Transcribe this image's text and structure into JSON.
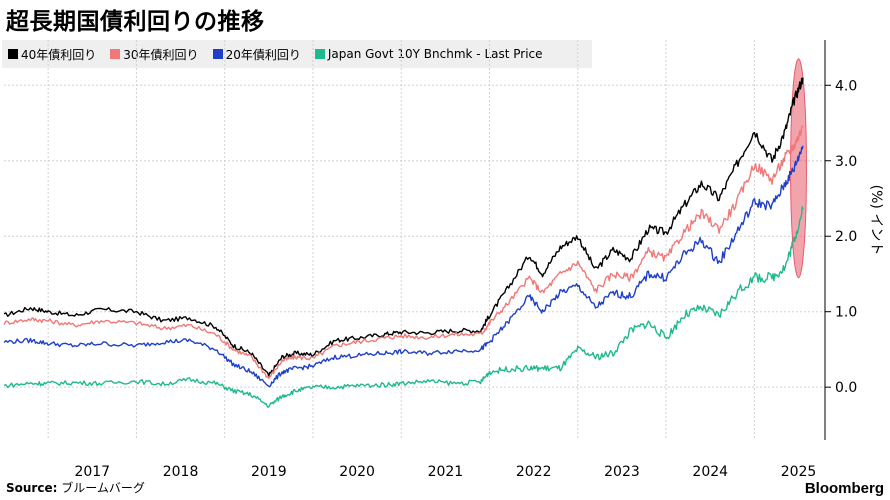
{
  "title": "超長期国債利回りの推移",
  "source_label": "Source:",
  "source_text": "ブルームバーグ",
  "brand": "Bloomberg",
  "chart_data": {
    "type": "line",
    "ylabel": "(%) イント",
    "y_ticks": [
      "4.0",
      "3.0",
      "2.0",
      "1.0",
      "0.0"
    ],
    "ylim": [
      -0.7,
      4.6
    ],
    "x_ticks": [
      "2017",
      "2018",
      "2019",
      "2020",
      "2021",
      "2022",
      "2023",
      "2024",
      "2025"
    ],
    "xlim": [
      2016.5,
      2025.8
    ],
    "grid": true,
    "legend_position": "top-left",
    "highlight": {
      "x_center": 2025.5,
      "y_center": 2.9,
      "rx": 0.09,
      "ry": 1.45,
      "color": "#e85a6a"
    },
    "series": [
      {
        "name": "40年債利回り",
        "color": "#000000",
        "x": [
          2016.5,
          2016.8,
          2017.0,
          2017.3,
          2017.6,
          2018.0,
          2018.3,
          2018.6,
          2018.9,
          2019.1,
          2019.3,
          2019.5,
          2019.65,
          2019.8,
          2020.0,
          2020.25,
          2020.5,
          2020.8,
          2021.0,
          2021.3,
          2021.6,
          2021.9,
          2022.0,
          2022.2,
          2022.45,
          2022.6,
          2022.8,
          2023.0,
          2023.2,
          2023.4,
          2023.6,
          2023.8,
          2024.0,
          2024.2,
          2024.4,
          2024.6,
          2024.8,
          2025.0,
          2025.2,
          2025.35,
          2025.45,
          2025.55
        ],
        "y": [
          0.95,
          1.05,
          1.0,
          0.95,
          1.03,
          1.0,
          0.88,
          0.92,
          0.8,
          0.55,
          0.45,
          0.15,
          0.4,
          0.45,
          0.43,
          0.62,
          0.65,
          0.7,
          0.73,
          0.72,
          0.75,
          0.75,
          0.95,
          1.3,
          1.75,
          1.5,
          1.85,
          2.0,
          1.55,
          1.82,
          1.7,
          2.1,
          2.05,
          2.4,
          2.7,
          2.5,
          2.95,
          3.4,
          3.0,
          3.4,
          3.8,
          4.1
        ]
      },
      {
        "name": "30年債利回り",
        "color": "#f07878",
        "x": [
          2016.5,
          2016.8,
          2017.0,
          2017.3,
          2017.6,
          2018.0,
          2018.3,
          2018.6,
          2018.9,
          2019.1,
          2019.3,
          2019.5,
          2019.65,
          2019.8,
          2020.0,
          2020.25,
          2020.5,
          2020.8,
          2021.0,
          2021.3,
          2021.6,
          2021.9,
          2022.0,
          2022.2,
          2022.45,
          2022.6,
          2022.8,
          2023.0,
          2023.2,
          2023.4,
          2023.6,
          2023.8,
          2024.0,
          2024.2,
          2024.4,
          2024.6,
          2024.8,
          2025.0,
          2025.2,
          2025.35,
          2025.45,
          2025.55
        ],
        "y": [
          0.85,
          0.9,
          0.88,
          0.82,
          0.88,
          0.85,
          0.78,
          0.82,
          0.7,
          0.5,
          0.4,
          0.12,
          0.35,
          0.4,
          0.38,
          0.55,
          0.6,
          0.65,
          0.68,
          0.66,
          0.7,
          0.7,
          0.85,
          1.1,
          1.45,
          1.25,
          1.5,
          1.65,
          1.28,
          1.5,
          1.45,
          1.8,
          1.7,
          2.05,
          2.3,
          2.1,
          2.45,
          2.95,
          2.75,
          3.05,
          3.2,
          3.45
        ]
      },
      {
        "name": "20年債利回り",
        "color": "#1f3fc9",
        "x": [
          2016.5,
          2016.8,
          2017.0,
          2017.3,
          2017.6,
          2018.0,
          2018.3,
          2018.6,
          2018.9,
          2019.1,
          2019.3,
          2019.5,
          2019.65,
          2019.8,
          2020.0,
          2020.25,
          2020.5,
          2020.8,
          2021.0,
          2021.3,
          2021.6,
          2021.9,
          2022.0,
          2022.2,
          2022.45,
          2022.6,
          2022.8,
          2023.0,
          2023.2,
          2023.4,
          2023.6,
          2023.8,
          2024.0,
          2024.2,
          2024.4,
          2024.6,
          2024.8,
          2025.0,
          2025.2,
          2025.35,
          2025.45,
          2025.55
        ],
        "y": [
          0.6,
          0.62,
          0.58,
          0.55,
          0.58,
          0.55,
          0.6,
          0.62,
          0.5,
          0.3,
          0.2,
          0.02,
          0.2,
          0.25,
          0.28,
          0.4,
          0.42,
          0.45,
          0.47,
          0.45,
          0.48,
          0.5,
          0.6,
          0.85,
          1.2,
          1.0,
          1.25,
          1.35,
          1.05,
          1.25,
          1.2,
          1.5,
          1.45,
          1.75,
          1.95,
          1.65,
          2.05,
          2.45,
          2.4,
          2.7,
          2.9,
          3.2
        ]
      },
      {
        "name": "Japan Govt 10Y Bnchmk - Last Price",
        "color": "#1fb98f",
        "x": [
          2016.5,
          2016.8,
          2017.0,
          2017.3,
          2017.6,
          2018.0,
          2018.3,
          2018.6,
          2018.9,
          2019.1,
          2019.3,
          2019.5,
          2019.65,
          2019.8,
          2020.0,
          2020.25,
          2020.5,
          2020.8,
          2021.0,
          2021.3,
          2021.6,
          2021.9,
          2022.0,
          2022.2,
          2022.45,
          2022.6,
          2022.8,
          2023.0,
          2023.2,
          2023.4,
          2023.6,
          2023.8,
          2024.0,
          2024.2,
          2024.4,
          2024.6,
          2024.8,
          2025.0,
          2025.2,
          2025.35,
          2025.45,
          2025.55
        ],
        "y": [
          0.02,
          0.05,
          0.05,
          0.06,
          0.05,
          0.08,
          0.04,
          0.1,
          0.05,
          -0.05,
          -0.1,
          -0.25,
          -0.12,
          -0.05,
          0.0,
          0.0,
          0.02,
          0.03,
          0.05,
          0.08,
          0.05,
          0.07,
          0.2,
          0.24,
          0.25,
          0.25,
          0.25,
          0.5,
          0.4,
          0.45,
          0.75,
          0.85,
          0.65,
          0.95,
          1.05,
          0.95,
          1.25,
          1.45,
          1.45,
          1.6,
          1.95,
          2.35
        ]
      }
    ]
  }
}
